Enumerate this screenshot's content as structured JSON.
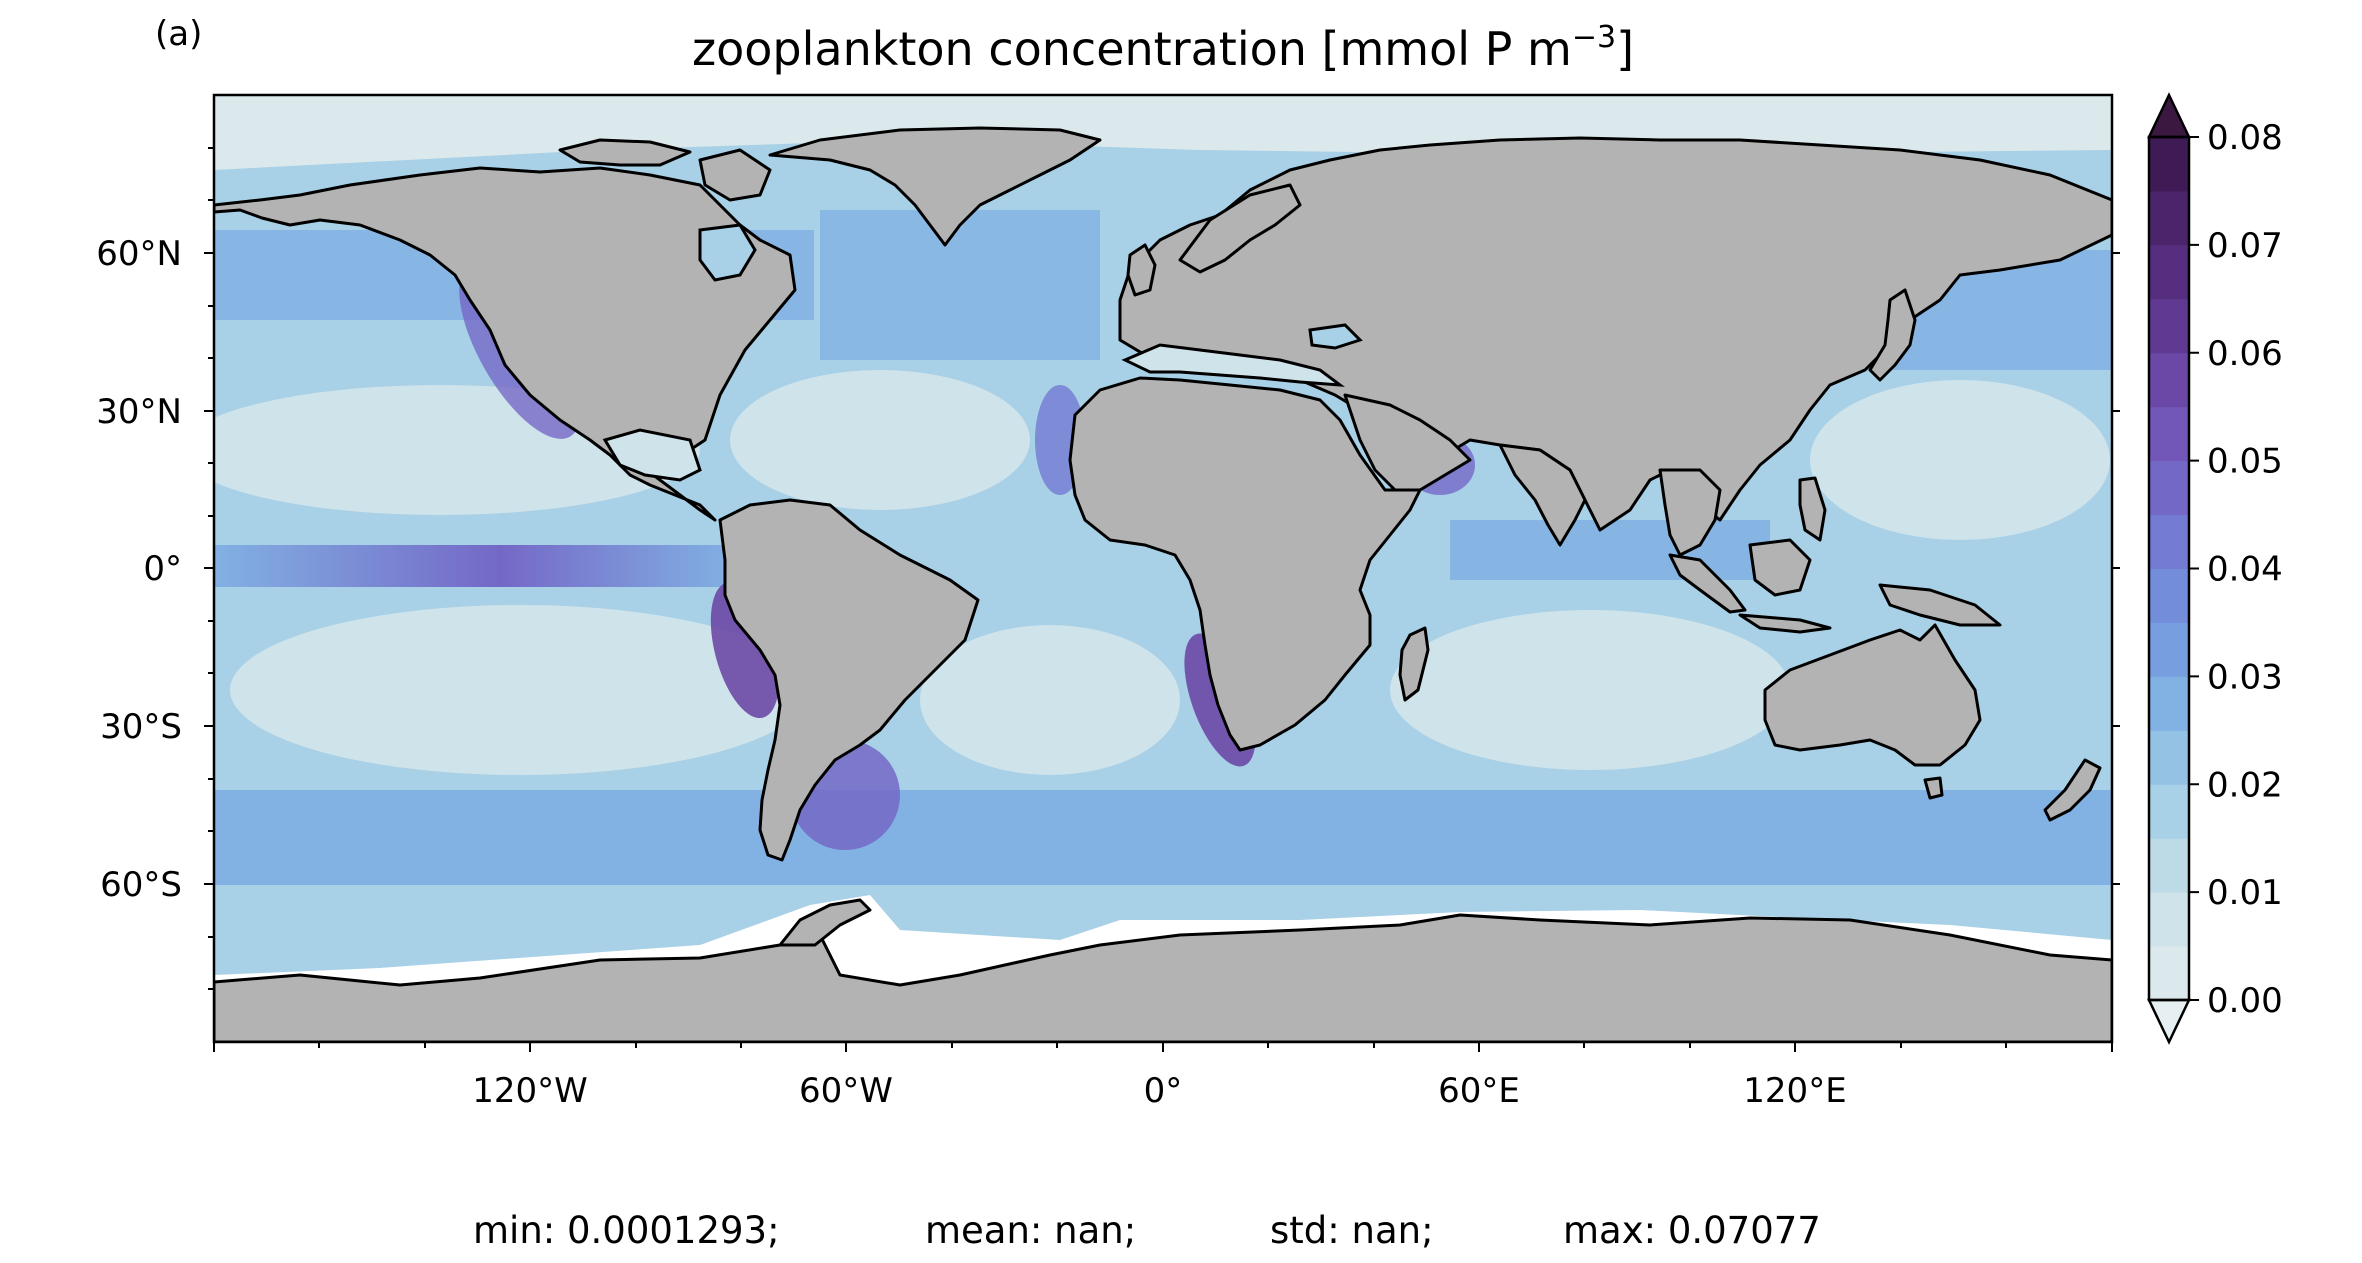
{
  "panel_label": "(a)",
  "title_main": "zooplankton concentration [mmol P m",
  "title_exp": "−3",
  "title_close": "]",
  "lon_ticks": [
    "120°W",
    "60°W",
    "0°",
    "60°E",
    "120°E"
  ],
  "lat_ticks": [
    "60°N",
    "30°N",
    "0°",
    "30°S",
    "60°S"
  ],
  "colorbar": {
    "ticks": [
      "0.00",
      "0.01",
      "0.02",
      "0.03",
      "0.04",
      "0.05",
      "0.06",
      "0.07",
      "0.08"
    ],
    "range": [
      0,
      0.08
    ],
    "levels": 16,
    "extend": "both",
    "colors": [
      "#dce9ec",
      "#cfe3ea",
      "#bddbe7",
      "#a8d0e6",
      "#93c2e5",
      "#82b1e3",
      "#779fe0",
      "#738ddb",
      "#737bd3",
      "#7468c7",
      "#7257b8",
      "#6b48a6",
      "#603a92",
      "#552e7f",
      "#4b246c",
      "#3f1b55"
    ],
    "under_color": "#e6f0f2",
    "over_color": "#3a1840"
  },
  "stats": {
    "min": "min: 0.0001293;",
    "mean": "mean: nan;",
    "std": "std: nan;",
    "max": "max: 0.07077"
  },
  "map_colors": {
    "land": "#b3b3b3",
    "coast": "#000000",
    "ice": "#ffffff",
    "ocean_low": "#cfe3ea",
    "ocean_mid": "#a8d0e6",
    "ocean_high": "#82b1e3",
    "upwelling": "#7468c7",
    "upwelling_core": "#6b48a6"
  }
}
